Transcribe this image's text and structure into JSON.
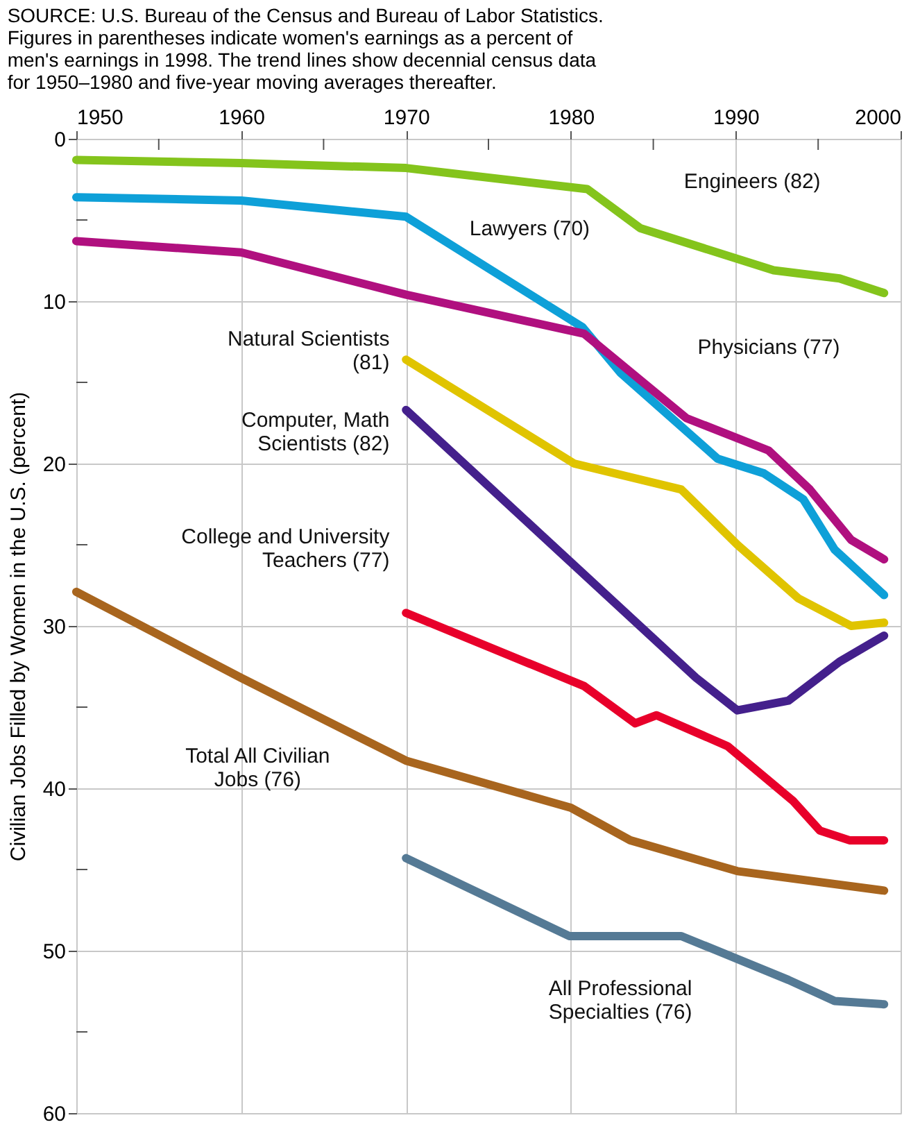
{
  "chart_data": {
    "type": "line",
    "ylabel": "Civilian Jobs Filled by Women in the U.S. (percent)",
    "annotations": [
      "SOURCE: U.S. Bureau of the Census and Bureau of Labor Statistics.",
      "Figures in parentheses indicate women's earnings as a percent of men's earnings in 1998. The trend lines show decennial census data for 1950–1980 and five-year moving averages thereafter."
    ],
    "xlim": [
      1950,
      2000
    ],
    "xticks": [
      1950,
      {
        "value": 1955,
        "label": null
      },
      1960,
      {
        "value": 1965,
        "label": null
      },
      1970,
      {
        "value": 1975,
        "label": null
      },
      1980,
      {
        "value": 1985,
        "label": null
      },
      1990,
      {
        "value": 1995,
        "label": null
      },
      2000
    ],
    "ylim": [
      60,
      0
    ],
    "yticks": [
      0,
      {
        "value": 5,
        "label": null
      },
      10,
      {
        "value": 15,
        "label": null
      },
      20,
      {
        "value": 25,
        "label": null
      },
      30,
      {
        "value": 35,
        "label": null
      },
      40,
      {
        "value": 45,
        "label": null
      },
      50,
      {
        "value": 55,
        "label": null
      },
      60
    ],
    "grid": true,
    "marker": "none",
    "line_style": "solid",
    "series": [
      {
        "name": "Engineers (82)",
        "color": "#84c41c",
        "x": [
          1950,
          1960,
          1970,
          1981,
          1984.2,
          1992.3,
          1996.3,
          1999
        ],
        "values": [
          1.3,
          1.5,
          1.8,
          3.1,
          5.5,
          8.1,
          8.6,
          9.5
        ]
      },
      {
        "name": "Lawyers (70)",
        "color": "#0ea0d8",
        "x": [
          1950,
          1960,
          1970,
          1980.7,
          1983,
          1988.9,
          1991.7,
          1994.1,
          1996,
          1999
        ],
        "values": [
          3.6,
          3.8,
          4.8,
          11.6,
          14.4,
          19.7,
          20.6,
          22.2,
          25.3,
          28.1
        ]
      },
      {
        "name": "Physicians (77)",
        "color": "#b0107f",
        "x": [
          1950,
          1960,
          1970,
          1980.8,
          1987,
          1992,
          1994.5,
          1997,
          1999
        ],
        "values": [
          6.3,
          7.0,
          9.6,
          12.0,
          17.2,
          19.2,
          21.6,
          24.7,
          25.9
        ]
      },
      {
        "name": "Natural Scientists (81)",
        "color": "#e0c400",
        "x": [
          1970,
          1980.2,
          1986.7,
          1990.1,
          1993.8,
          1997,
          1999
        ],
        "values": [
          13.6,
          20.0,
          21.6,
          25.0,
          28.3,
          30.0,
          29.8
        ]
      },
      {
        "name": "Computer, Math Scientists (82)",
        "color": "#44208c",
        "x": [
          1970,
          1987.6,
          1990.1,
          1993.2,
          1996.3,
          1999
        ],
        "values": [
          16.7,
          33.2,
          35.2,
          34.6,
          32.2,
          30.6
        ]
      },
      {
        "name": "College and University Teachers (77)",
        "color": "#e8002a",
        "x": [
          1970,
          1980.8,
          1983.9,
          1985.2,
          1989.5,
          1993.5,
          1995.1,
          1996.9,
          1999
        ],
        "values": [
          29.2,
          33.7,
          36.0,
          35.5,
          37.4,
          40.8,
          42.6,
          43.2,
          43.2
        ]
      },
      {
        "name": "Total All Civilian Jobs (76)",
        "color": "#a8651e",
        "x": [
          1950,
          1960,
          1970,
          1980,
          1983.6,
          1990.1,
          1999
        ],
        "values": [
          27.9,
          33.2,
          38.3,
          41.2,
          43.2,
          45.1,
          46.3
        ]
      },
      {
        "name": "All Professional Specialties (76)",
        "color": "#557a95",
        "x": [
          1970,
          1979.9,
          1986.7,
          1993.2,
          1996,
          1999
        ],
        "values": [
          44.3,
          49.1,
          49.1,
          51.8,
          53.1,
          53.3
        ]
      }
    ]
  }
}
